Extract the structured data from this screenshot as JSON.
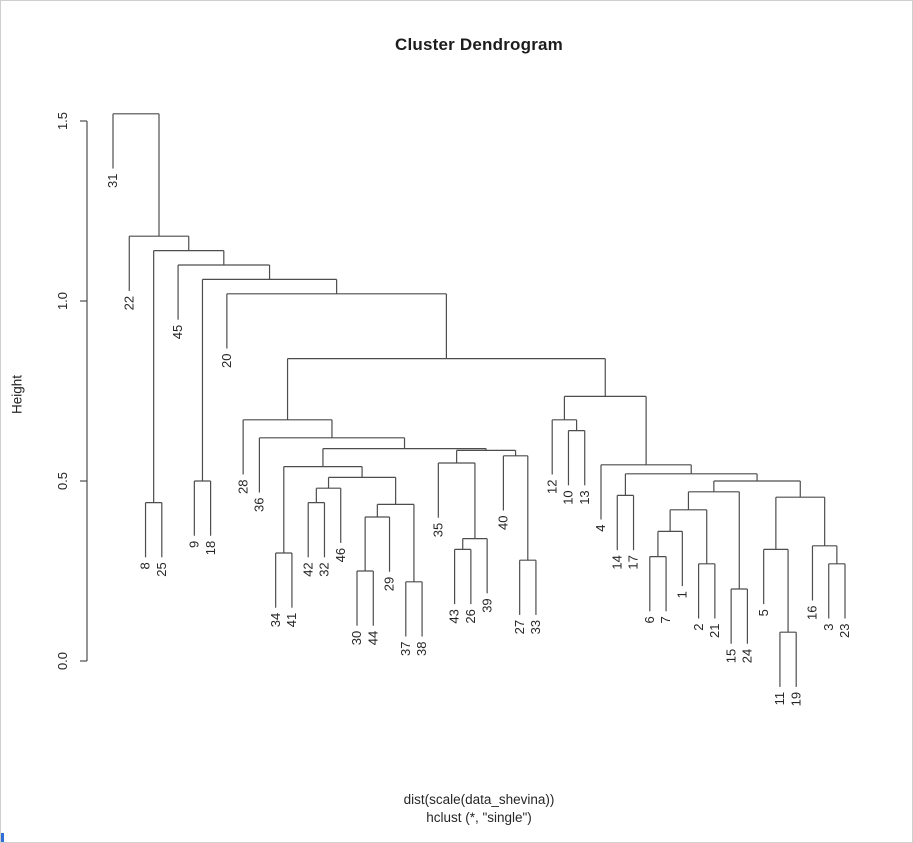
{
  "window": {
    "border_color": "#cfcfcf",
    "edge_artifact_color": "#2f6fd6"
  },
  "chart_data": {
    "type": "dendrogram",
    "title": "Cluster Dendrogram",
    "ylabel": "Height",
    "xlabel_lines": [
      "dist(scale(data_shevina))",
      "hclust (*, \"single\")"
    ],
    "yticks": [
      0.0,
      0.5,
      1.0,
      1.5
    ],
    "ylim": [
      0,
      1.6
    ],
    "hang": 0.152,
    "n_leaves": 46,
    "colors": {
      "line": "#4d4d4d",
      "text": "#262626",
      "title": "#1c1c1c"
    },
    "leaf_order": [
      "31",
      "22",
      "8",
      "25",
      "45",
      "9",
      "18",
      "20",
      "28",
      "36",
      "34",
      "41",
      "42",
      "32",
      "46",
      "30",
      "44",
      "29",
      "37",
      "38",
      "35",
      "43",
      "26",
      "39",
      "40",
      "27",
      "33",
      "12",
      "10",
      "13",
      "4",
      "14",
      "17",
      "6",
      "7",
      "1",
      "2",
      "21",
      "15",
      "24",
      "5",
      "11",
      "19",
      "16",
      "3",
      "23"
    ],
    "tree": {
      "h": 1.52,
      "c": [
        "31",
        {
          "h": 1.18,
          "c": [
            "22",
            {
              "h": 1.14,
              "c": [
                {
                  "h": 0.44,
                  "c": [
                    "8",
                    "25"
                  ]
                },
                {
                  "h": 1.1,
                  "c": [
                    "45",
                    {
                      "h": 1.06,
                      "c": [
                        {
                          "h": 0.5,
                          "c": [
                            "9",
                            "18"
                          ]
                        },
                        {
                          "h": 1.02,
                          "c": [
                            "20",
                            {
                              "h": 0.84,
                              "c": [
                                {
                                  "h": 0.67,
                                  "c": [
                                    "28",
                                    {
                                      "h": 0.62,
                                      "c": [
                                        "36",
                                        {
                                          "h": 0.59,
                                          "c": [
                                            {
                                              "h": 0.54,
                                              "c": [
                                                {
                                                  "h": 0.3,
                                                  "c": [
                                                    "34",
                                                    "41"
                                                  ]
                                                },
                                                {
                                                  "h": 0.51,
                                                  "c": [
                                                    {
                                                      "h": 0.48,
                                                      "c": [
                                                        {
                                                          "h": 0.44,
                                                          "c": [
                                                            "42",
                                                            "32"
                                                          ]
                                                        },
                                                        "46"
                                                      ]
                                                    },
                                                    {
                                                      "h": 0.435,
                                                      "c": [
                                                        {
                                                          "h": 0.4,
                                                          "c": [
                                                            {
                                                              "h": 0.25,
                                                              "c": [
                                                                "30",
                                                                "44"
                                                              ]
                                                            },
                                                            "29"
                                                          ]
                                                        },
                                                        {
                                                          "h": 0.22,
                                                          "c": [
                                                            "37",
                                                            "38"
                                                          ]
                                                        }
                                                      ]
                                                    }
                                                  ]
                                                }
                                              ]
                                            },
                                            {
                                              "h": 0.585,
                                              "c": [
                                                {
                                                  "h": 0.55,
                                                  "c": [
                                                    "35",
                                                    {
                                                      "h": 0.34,
                                                      "c": [
                                                        {
                                                          "h": 0.31,
                                                          "c": [
                                                            "43",
                                                            "26"
                                                          ]
                                                        },
                                                        "39"
                                                      ]
                                                    }
                                                  ]
                                                },
                                                {
                                                  "h": 0.57,
                                                  "c": [
                                                    "40",
                                                    {
                                                      "h": 0.28,
                                                      "c": [
                                                        "27",
                                                        "33"
                                                      ]
                                                    }
                                                  ]
                                                }
                                              ]
                                            }
                                          ]
                                        }
                                      ]
                                    }
                                  ]
                                },
                                {
                                  "h": 0.735,
                                  "c": [
                                    {
                                      "h": 0.67,
                                      "c": [
                                        "12",
                                        {
                                          "h": 0.64,
                                          "c": [
                                            "10",
                                            "13"
                                          ]
                                        }
                                      ]
                                    },
                                    {
                                      "h": 0.545,
                                      "c": [
                                        "4",
                                        {
                                          "h": 0.52,
                                          "c": [
                                            {
                                              "h": 0.46,
                                              "c": [
                                                "14",
                                                "17"
                                              ]
                                            },
                                            {
                                              "h": 0.5,
                                              "c": [
                                                {
                                                  "h": 0.47,
                                                  "c": [
                                                    {
                                                      "h": 0.42,
                                                      "c": [
                                                        {
                                                          "h": 0.36,
                                                          "c": [
                                                            {
                                                              "h": 0.29,
                                                              "c": [
                                                                "6",
                                                                "7"
                                                              ]
                                                            },
                                                            "1"
                                                          ]
                                                        },
                                                        {
                                                          "h": 0.27,
                                                          "c": [
                                                            "2",
                                                            "21"
                                                          ]
                                                        }
                                                      ]
                                                    },
                                                    {
                                                      "h": 0.2,
                                                      "c": [
                                                        "15",
                                                        "24"
                                                      ]
                                                    }
                                                  ]
                                                },
                                                {
                                                  "h": 0.455,
                                                  "c": [
                                                    {
                                                      "h": 0.31,
                                                      "c": [
                                                        "5",
                                                        {
                                                          "h": 0.08,
                                                          "c": [
                                                            "11",
                                                            "19"
                                                          ]
                                                        }
                                                      ]
                                                    },
                                                    {
                                                      "h": 0.32,
                                                      "c": [
                                                        "16",
                                                        {
                                                          "h": 0.27,
                                                          "c": [
                                                            "3",
                                                            "23"
                                                          ]
                                                        }
                                                      ]
                                                    }
                                                  ]
                                                }
                                              ]
                                            }
                                          ]
                                        }
                                      ]
                                    }
                                  ]
                                }
                              ]
                            }
                          ]
                        }
                      ]
                    }
                  ]
                }
              ]
            }
          ]
        }
      ]
    }
  }
}
